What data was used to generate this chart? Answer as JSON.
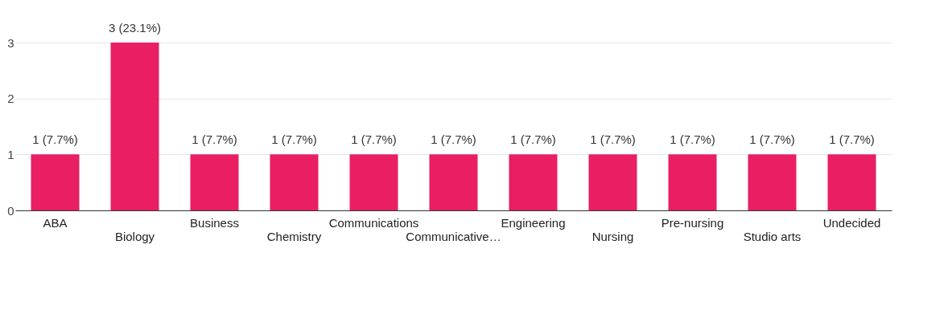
{
  "chart_data": {
    "type": "bar",
    "categories": [
      "ABA",
      "Biology",
      "Business",
      "Chemistry",
      "Communications",
      "Communicative…",
      "Engineering",
      "Nursing",
      "Pre-nursing",
      "Studio arts",
      "Undecided"
    ],
    "values": [
      1,
      3,
      1,
      1,
      1,
      1,
      1,
      1,
      1,
      1,
      1
    ],
    "value_labels": [
      "1 (7.7%)",
      "3 (23.1%)",
      "1 (7.7%)",
      "1 (7.7%)",
      "1 (7.7%)",
      "1 (7.7%)",
      "1 (7.7%)",
      "1 (7.7%)",
      "1 (7.7%)",
      "1 (7.7%)",
      "1 (7.7%)"
    ],
    "color": "#e91e63",
    "ylim": [
      0,
      3
    ],
    "yticks": [
      0,
      1,
      2,
      3
    ],
    "grid": "y"
  }
}
